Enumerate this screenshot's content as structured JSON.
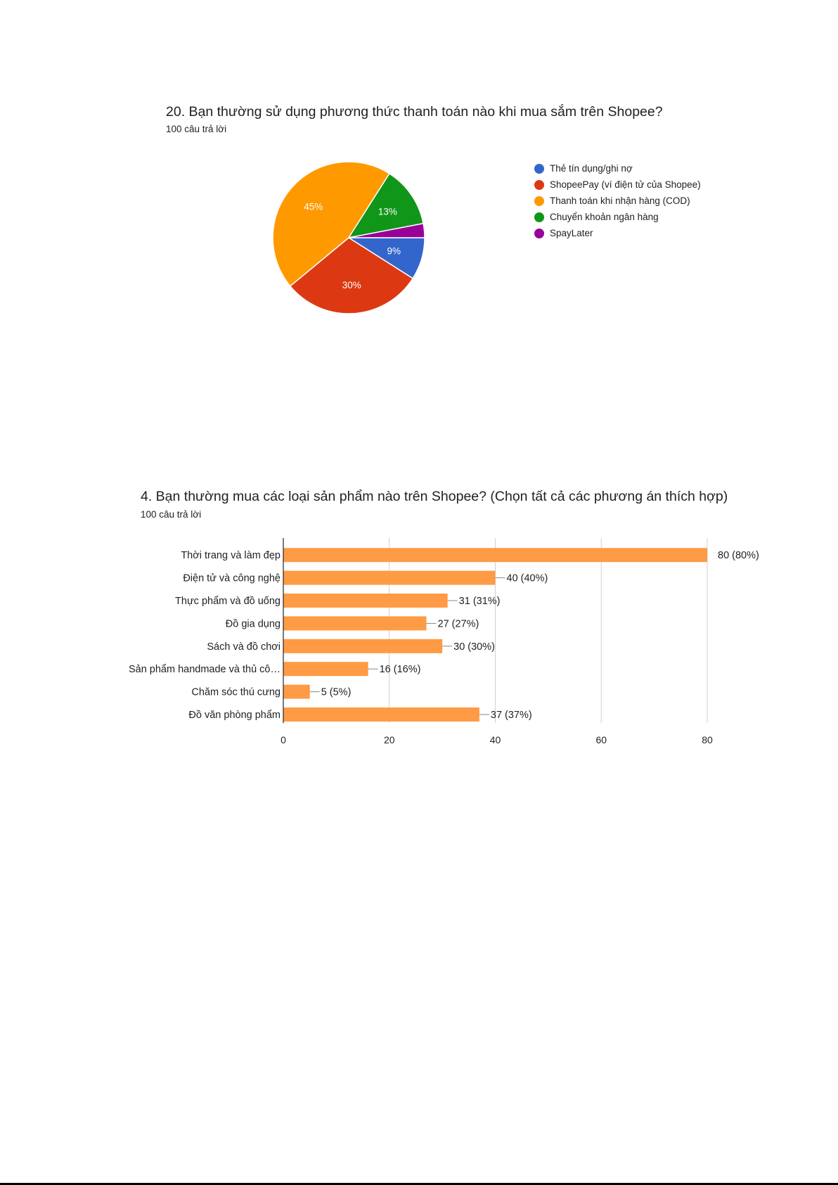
{
  "chart_data": [
    {
      "type": "pie",
      "title": "20. Bạn thường sử dụng phương thức thanh toán nào khi mua sắm trên Shopee?",
      "subtitle": "100 câu trả lời",
      "legend_position": "right",
      "slices": [
        {
          "label": "Thẻ tín dụng/ghi nợ",
          "value": 9,
          "percent_label": "9%",
          "color": "#3366cc"
        },
        {
          "label": "ShopeePay (ví điện tử của Shopee)",
          "value": 30,
          "percent_label": "30%",
          "color": "#dc3912"
        },
        {
          "label": "Thanh toán khi nhận hàng (COD)",
          "value": 45,
          "percent_label": "45%",
          "color": "#ff9900"
        },
        {
          "label": "Chuyển khoản ngân hàng",
          "value": 13,
          "percent_label": "13%",
          "color": "#109618"
        },
        {
          "label": "SpayLater",
          "value": 3,
          "percent_label": "",
          "color": "#990099"
        }
      ]
    },
    {
      "type": "bar",
      "orientation": "horizontal",
      "title": "4. Bạn thường mua các loại sản phẩm nào trên Shopee? (Chọn tất cả các phương án thích hợp)",
      "subtitle": "100 câu trả lời",
      "categories": [
        "Thời trang và làm đẹp",
        "Điện tử và công nghệ",
        "Thực phẩm và đồ uống",
        "Đồ gia dụng",
        "Sách và đồ chơi",
        "Sản phẩm handmade và thủ cô…",
        "Chăm sóc thú cưng",
        "Đồ văn phòng phẩm"
      ],
      "values": [
        80,
        40,
        31,
        27,
        30,
        16,
        5,
        37
      ],
      "data_labels": [
        "80 (80%)",
        "40 (40%)",
        "31 (31%)",
        "27 (27%)",
        "30 (30%)",
        "16 (16%)",
        "5 (5%)",
        "37 (37%)"
      ],
      "xlim": [
        0,
        80
      ],
      "xticks": [
        "0",
        "20",
        "40",
        "60",
        "80"
      ],
      "grid": true,
      "bar_color": "#ff9a45"
    }
  ]
}
